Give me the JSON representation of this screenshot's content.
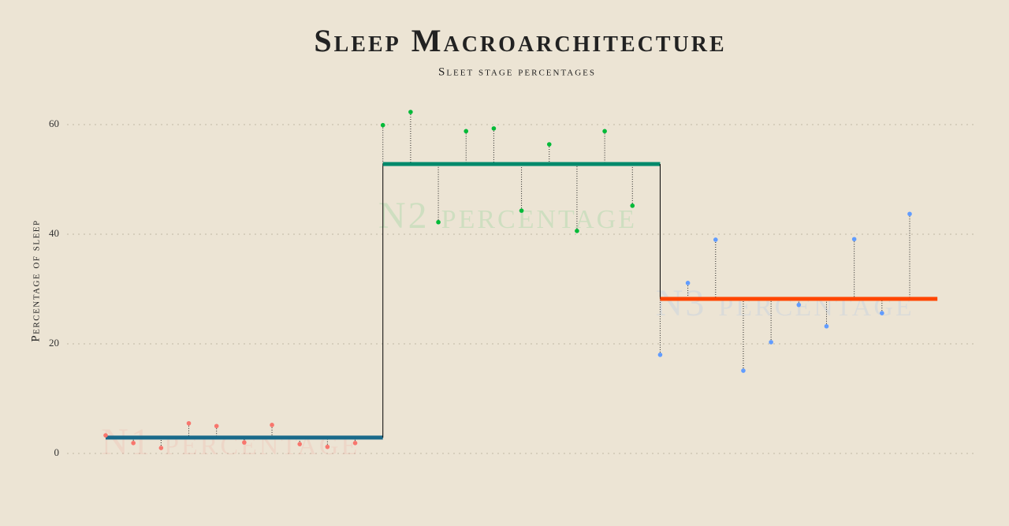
{
  "chart_data": {
    "type": "step-dot",
    "title": "Sleep Macroarchitecture",
    "subtitle": "Sleet stage percentages",
    "y_label": "Percentage of sleep",
    "ylim": [
      -6,
      64
    ],
    "yticks": [
      0,
      20,
      40,
      60
    ],
    "grid": true,
    "series": [
      {
        "name": "N1 percentage",
        "color": "#f8766d",
        "mean_color": "#1a6a8a",
        "mean": 2.9,
        "values": [
          3.3,
          1.9,
          1.0,
          5.5,
          5.0,
          2.0,
          5.2,
          1.7,
          1.2,
          1.9
        ]
      },
      {
        "name": "N2 percentage",
        "color": "#00ba38",
        "mean_color": "#00896b",
        "mean": 52.8,
        "values": [
          59.9,
          62.3,
          42.2,
          58.8,
          59.3,
          44.3,
          56.4,
          40.6,
          58.8,
          45.2
        ]
      },
      {
        "name": "N3 percentage",
        "color": "#619cff",
        "mean_color": "#ff4500",
        "mean": 28.2,
        "values": [
          18.0,
          31.1,
          39.0,
          15.1,
          20.3,
          27.1,
          23.2,
          39.1,
          25.6,
          43.7
        ]
      }
    ]
  }
}
